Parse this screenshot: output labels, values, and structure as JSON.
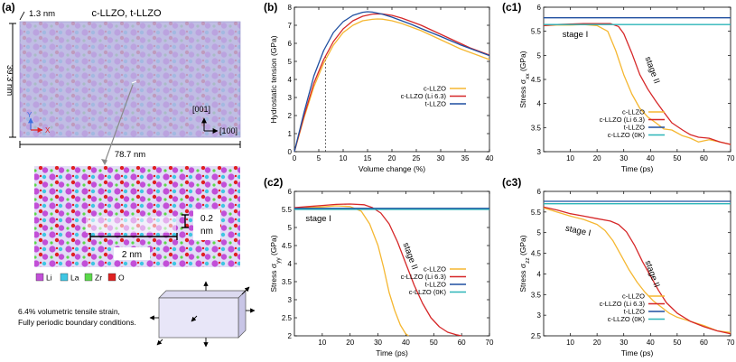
{
  "panel_a": {
    "label": "(a)",
    "title": "c-LLZO, t-LLZO",
    "thickness": "1.3 nm",
    "height": "39.3 nm",
    "width": "78.7 nm",
    "axis_y": "Y",
    "axis_x": "X",
    "dir_up": "[001]",
    "dir_right": "[100]",
    "gap_label_1": "0.2",
    "gap_label_2": "nm",
    "length_label": "2 nm",
    "legend": [
      {
        "name": "Li",
        "color": "#c24fd8"
      },
      {
        "name": "La",
        "color": "#3fc6e3"
      },
      {
        "name": "Zr",
        "color": "#5bd94a"
      },
      {
        "name": "O",
        "color": "#e02020"
      }
    ],
    "note_1": "6.4% volumetric tensile strain,",
    "note_2": "Fully periodic boundary conditions.",
    "colors": {
      "slab": "#b9b6e0",
      "atoms_bg": "#d4ccf0"
    }
  },
  "chart_data": [
    {
      "id": "b",
      "label": "(b)",
      "type": "line",
      "xlabel": "Volume change (%)",
      "ylabel": "Hydrostatic tension (GPa)",
      "xlim": [
        0,
        40
      ],
      "ylim": [
        0,
        8
      ],
      "xticks": [
        "0",
        "5",
        "10",
        "15",
        "20",
        "25",
        "30",
        "35",
        "40"
      ],
      "yticks": [
        "0",
        "1",
        "2",
        "3",
        "4",
        "5",
        "6",
        "7",
        "8"
      ],
      "marker_line_x": 6.4,
      "legend_position": "center-right",
      "series": [
        {
          "name": "c-LLZO",
          "color": "#f5b731",
          "x": [
            0,
            2,
            4,
            6,
            8,
            10,
            12,
            14,
            16,
            17,
            18,
            20,
            22,
            24,
            26,
            28,
            30,
            32,
            34,
            36,
            38,
            40
          ],
          "y": [
            0,
            1.9,
            3.6,
            4.9,
            5.9,
            6.6,
            7.0,
            7.25,
            7.33,
            7.35,
            7.34,
            7.25,
            7.1,
            6.9,
            6.7,
            6.45,
            6.2,
            5.95,
            5.7,
            5.5,
            5.3,
            5.1
          ]
        },
        {
          "name": "c-LLZO (Li 6.3)",
          "color": "#d62728",
          "x": [
            0,
            2,
            4,
            6,
            8,
            10,
            12,
            14,
            16,
            18,
            20,
            22,
            24,
            26,
            28,
            30,
            32,
            34,
            36,
            38,
            40
          ],
          "y": [
            0,
            2.0,
            3.8,
            5.1,
            6.1,
            6.8,
            7.25,
            7.5,
            7.62,
            7.63,
            7.55,
            7.4,
            7.2,
            7.0,
            6.75,
            6.5,
            6.25,
            6.0,
            5.75,
            5.55,
            5.35
          ]
        },
        {
          "name": "t-LLZO",
          "color": "#1f4fa0",
          "x": [
            0,
            2,
            4,
            6,
            8,
            10,
            12,
            14,
            15,
            16,
            18,
            20,
            22,
            24,
            26,
            28,
            30,
            32,
            34,
            36,
            38,
            40
          ],
          "y": [
            0,
            2.2,
            4.2,
            5.6,
            6.6,
            7.2,
            7.55,
            7.72,
            7.75,
            7.73,
            7.62,
            7.45,
            7.25,
            7.05,
            6.82,
            6.6,
            6.38,
            6.15,
            5.92,
            5.72,
            5.52,
            5.32
          ]
        }
      ]
    },
    {
      "id": "c1",
      "label": "(c1)",
      "type": "line",
      "xlabel": "Time (ps)",
      "ylabel_prefix": "Stress σ",
      "ylabel_sub": "xx",
      "ylabel_suffix": " (GPa)",
      "xlim": [
        0,
        70
      ],
      "ylim": [
        3,
        6
      ],
      "xticks": [
        "10",
        "20",
        "30",
        "40",
        "50",
        "60",
        "70"
      ],
      "yticks": [
        "3",
        "3.5",
        "4",
        "4.5",
        "5",
        "5.5",
        "6"
      ],
      "annotations": [
        {
          "text": "stage I",
          "x": 7,
          "y": 5.38
        },
        {
          "text": "stage II",
          "x": 38,
          "y": 4.95
        }
      ],
      "legend_position": "bottom-left",
      "series": [
        {
          "name": "c-LLZO",
          "color": "#f5b731",
          "x": [
            0,
            5,
            10,
            15,
            20,
            24,
            27,
            30,
            33,
            36,
            39,
            42,
            45,
            48,
            52,
            55,
            58,
            62,
            66,
            70
          ],
          "y": [
            5.62,
            5.63,
            5.63,
            5.64,
            5.62,
            5.5,
            5.1,
            4.6,
            4.2,
            3.9,
            3.72,
            3.6,
            3.47,
            3.45,
            3.33,
            3.28,
            3.2,
            3.25,
            3.2,
            3.15
          ]
        },
        {
          "name": "c-LLZO (Li 6.3)",
          "color": "#d62728",
          "x": [
            0,
            5,
            10,
            15,
            20,
            25,
            28,
            30,
            33,
            36,
            39,
            42,
            45,
            48,
            52,
            55,
            58,
            62,
            66,
            70
          ],
          "y": [
            5.62,
            5.64,
            5.65,
            5.66,
            5.66,
            5.66,
            5.6,
            5.45,
            5.05,
            4.6,
            4.3,
            4.05,
            3.82,
            3.6,
            3.45,
            3.35,
            3.3,
            3.28,
            3.2,
            3.15
          ]
        },
        {
          "name": "t-LLZO",
          "color": "#1f4fa0",
          "x": [
            0,
            70
          ],
          "y": [
            5.78,
            5.78
          ]
        },
        {
          "name": "c-LLZO (0K)",
          "color": "#2bb5b8",
          "x": [
            0,
            70
          ],
          "y": [
            5.64,
            5.64
          ]
        }
      ]
    },
    {
      "id": "c2",
      "label": "(c2)",
      "type": "line",
      "xlabel": "Time (ps)",
      "ylabel_prefix": "Stress σ",
      "ylabel_sub": "yy",
      "ylabel_suffix": " (GPa)",
      "xlim": [
        0,
        70
      ],
      "ylim": [
        2,
        6
      ],
      "xticks": [
        "10",
        "20",
        "30",
        "40",
        "50",
        "60",
        "70"
      ],
      "yticks": [
        "2",
        "2.5",
        "3",
        "3.5",
        "4",
        "4.5",
        "5",
        "5.5",
        "6"
      ],
      "annotations": [
        {
          "text": "stage I",
          "x": 4,
          "y": 5.18
        },
        {
          "text": "stage II",
          "x": 39,
          "y": 4.55
        }
      ],
      "legend_position": "bottom-left",
      "series": [
        {
          "name": "c-LLZO",
          "color": "#f5b731",
          "x": [
            0,
            5,
            10,
            15,
            20,
            24,
            27,
            30,
            32,
            34,
            36,
            38,
            40,
            41
          ],
          "y": [
            5.52,
            5.55,
            5.57,
            5.6,
            5.58,
            5.45,
            5.1,
            4.5,
            3.9,
            3.2,
            2.7,
            2.3,
            2.05,
            2.0
          ]
        },
        {
          "name": "c-LLZO (Li 6.3)",
          "color": "#d62728",
          "x": [
            0,
            5,
            10,
            15,
            20,
            25,
            28,
            31,
            34,
            37,
            40,
            43,
            46,
            49,
            52,
            55,
            58,
            60
          ],
          "y": [
            5.55,
            5.58,
            5.61,
            5.64,
            5.65,
            5.63,
            5.55,
            5.4,
            5.1,
            4.6,
            4.0,
            3.4,
            2.9,
            2.5,
            2.25,
            2.1,
            2.03,
            2.0
          ]
        },
        {
          "name": "t-LLZO",
          "color": "#1f4fa0",
          "x": [
            0,
            70
          ],
          "y": [
            5.53,
            5.53
          ]
        },
        {
          "name": "c-LLZO (0K)",
          "color": "#2bb5b8",
          "x": [
            0,
            70
          ],
          "y": [
            5.5,
            5.5
          ]
        }
      ]
    },
    {
      "id": "c3",
      "label": "(c3)",
      "type": "line",
      "xlabel": "Time (ps)",
      "ylabel_prefix": "Stress σ",
      "ylabel_sub": "zz",
      "ylabel_suffix": " (GPa)",
      "xlim": [
        0,
        70
      ],
      "ylim": [
        2.5,
        6
      ],
      "xticks": [
        "10",
        "20",
        "30",
        "40",
        "50",
        "60",
        "70"
      ],
      "yticks": [
        "2.5",
        "3",
        "3.5",
        "4",
        "4.5",
        "5",
        "5.5",
        "6"
      ],
      "annotations": [
        {
          "text": "stage I",
          "x": 8,
          "y": 5.05
        },
        {
          "text": "stage II",
          "x": 38,
          "y": 4.3
        }
      ],
      "legend_position": "bottom-left",
      "series": [
        {
          "name": "c-LLZO",
          "color": "#f5b731",
          "x": [
            0,
            5,
            10,
            15,
            20,
            23,
            26,
            29,
            32,
            35,
            38,
            41,
            44,
            47,
            50,
            55,
            60,
            65,
            70
          ],
          "y": [
            5.6,
            5.5,
            5.4,
            5.32,
            5.2,
            5.05,
            4.8,
            4.45,
            4.1,
            3.8,
            3.55,
            3.35,
            3.2,
            3.05,
            2.95,
            2.85,
            2.75,
            2.62,
            2.58
          ]
        },
        {
          "name": "c-LLZO (Li 6.3)",
          "color": "#d62728",
          "x": [
            0,
            5,
            10,
            15,
            20,
            25,
            28,
            31,
            34,
            37,
            40,
            43,
            46,
            50,
            55,
            60,
            65,
            70
          ],
          "y": [
            5.62,
            5.55,
            5.46,
            5.4,
            5.34,
            5.28,
            5.2,
            5.02,
            4.7,
            4.3,
            3.95,
            3.6,
            3.3,
            3.05,
            2.85,
            2.72,
            2.62,
            2.55
          ]
        },
        {
          "name": "t-LLZO",
          "color": "#1f4fa0",
          "x": [
            0,
            70
          ],
          "y": [
            5.76,
            5.76
          ]
        },
        {
          "name": "c-LLZO (0K)",
          "color": "#2bb5b8",
          "x": [
            0,
            70
          ],
          "y": [
            5.7,
            5.7
          ]
        }
      ]
    }
  ]
}
